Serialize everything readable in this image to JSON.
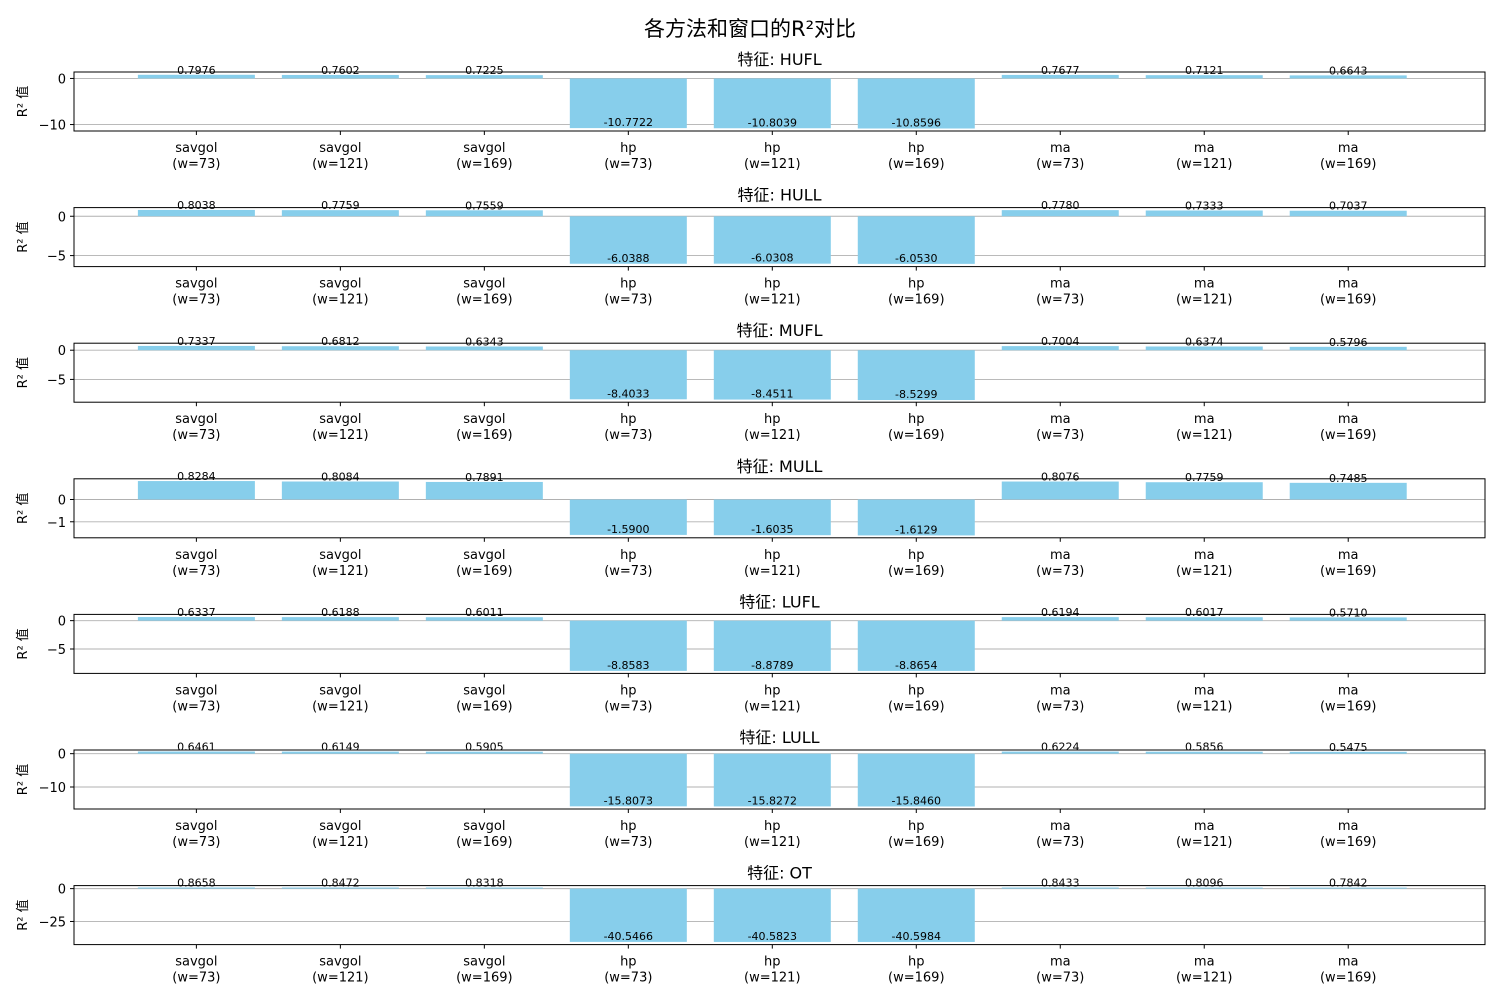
{
  "chart_data": {
    "type": "bar",
    "title": "各方法和窗口的R²对比",
    "ylabel": "R² 值",
    "bar_color": "#87ceeb",
    "grid": "y",
    "categories": [
      "savgol\n(w=73)",
      "savgol\n(w=121)",
      "savgol\n(w=169)",
      "hp\n(w=73)",
      "hp\n(w=121)",
      "hp\n(w=169)",
      "ma\n(w=73)",
      "ma\n(w=121)",
      "ma\n(w=169)"
    ],
    "panels": [
      {
        "title": "特征: HUFL",
        "ylim": [
          -11.4,
          1.4
        ],
        "yticks": [
          0,
          -10
        ],
        "values": [
          0.7976,
          0.7602,
          0.7225,
          -10.7722,
          -10.8039,
          -10.8596,
          0.7677,
          0.7121,
          0.6643
        ],
        "value_labels": [
          "0.7976",
          "0.7602",
          "0.7225",
          "-10.7722",
          "-10.8039",
          "-10.8596",
          "0.7677",
          "0.7121",
          "0.6643"
        ]
      },
      {
        "title": "特征: HULL",
        "ylim": [
          -6.4,
          1.1
        ],
        "yticks": [
          0,
          -5
        ],
        "values": [
          0.8038,
          0.7759,
          0.7559,
          -6.0388,
          -6.0308,
          -6.053,
          0.778,
          0.7333,
          0.7037
        ],
        "value_labels": [
          "0.8038",
          "0.7759",
          "0.7559",
          "-6.0388",
          "-6.0308",
          "-6.0530",
          "0.7780",
          "0.7333",
          "0.7037"
        ]
      },
      {
        "title": "特征: MUFL",
        "ylim": [
          -8.9,
          1.2
        ],
        "yticks": [
          0,
          -5
        ],
        "values": [
          0.7337,
          0.6812,
          0.6343,
          -8.4033,
          -8.4511,
          -8.5299,
          0.7004,
          0.6374,
          0.5796
        ],
        "value_labels": [
          "0.7337",
          "0.6812",
          "0.6343",
          "-8.4033",
          "-8.4511",
          "-8.5299",
          "0.7004",
          "0.6374",
          "0.5796"
        ]
      },
      {
        "title": "特征: MULL",
        "ylim": [
          -1.72,
          0.93
        ],
        "yticks": [
          0,
          -1
        ],
        "values": [
          0.8284,
          0.8084,
          0.7891,
          -1.59,
          -1.6035,
          -1.6129,
          0.8076,
          0.7759,
          0.7485
        ],
        "value_labels": [
          "0.8284",
          "0.8084",
          "0.7891",
          "-1.5900",
          "-1.6035",
          "-1.6129",
          "0.8076",
          "0.7759",
          "0.7485"
        ]
      },
      {
        "title": "特征: LUFL",
        "ylim": [
          -9.3,
          1.1
        ],
        "yticks": [
          0,
          -5
        ],
        "values": [
          0.6337,
          0.6188,
          0.6011,
          -8.8583,
          -8.8789,
          -8.8654,
          0.6194,
          0.6017,
          0.571
        ],
        "value_labels": [
          "0.6337",
          "0.6188",
          "0.6011",
          "-8.8583",
          "-8.8789",
          "-8.8654",
          "0.6194",
          "0.6017",
          "0.5710"
        ]
      },
      {
        "title": "特征: LULL",
        "ylim": [
          -16.6,
          1.1
        ],
        "yticks": [
          0,
          -10
        ],
        "values": [
          0.6461,
          0.6149,
          0.5905,
          -15.8073,
          -15.8272,
          -15.846,
          0.6224,
          0.5856,
          0.5475
        ],
        "value_labels": [
          "0.6461",
          "0.6149",
          "0.5905",
          "-15.8073",
          "-15.8272",
          "-15.8460",
          "0.6224",
          "0.5856",
          "0.5475"
        ]
      },
      {
        "title": "特征: OT",
        "ylim": [
          -42.6,
          2.3
        ],
        "yticks": [
          0,
          -25
        ],
        "values": [
          0.8658,
          0.8472,
          0.8318,
          -40.5466,
          -40.5823,
          -40.5984,
          0.8433,
          0.8096,
          0.7842
        ],
        "value_labels": [
          "0.8658",
          "0.8472",
          "0.8318",
          "-40.5466",
          "-40.5823",
          "-40.5984",
          "0.8433",
          "0.8096",
          "0.7842"
        ]
      }
    ]
  }
}
